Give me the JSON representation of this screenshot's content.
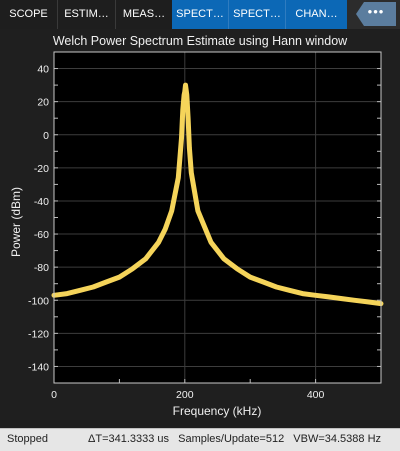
{
  "tabs": [
    {
      "label": "SCOPE",
      "selected": false
    },
    {
      "label": "ESTIM…",
      "selected": false
    },
    {
      "label": "MEAS…",
      "selected": false
    },
    {
      "label": "SPECT…",
      "selected": true
    },
    {
      "label": "SPECT…",
      "selected": true
    },
    {
      "label": "CHAN…",
      "selected": true
    }
  ],
  "more_label": "•••",
  "chart_data": {
    "type": "line",
    "title": "Welch Power Spectrum Estimate using Hann window",
    "xlabel": "Frequency (kHz)",
    "ylabel": "Power (dBm)",
    "xlim": [
      0,
      500
    ],
    "ylim": [
      -150,
      50
    ],
    "xticks": [
      0,
      200,
      400
    ],
    "yticks": [
      40,
      20,
      0,
      -20,
      -40,
      -60,
      -80,
      -100,
      -120,
      -140
    ],
    "grid": true,
    "line_color": "#f5d45a",
    "background": "#000000",
    "series": [
      {
        "x": [
          0,
          20,
          40,
          60,
          80,
          100,
          120,
          140,
          160,
          170,
          180,
          190,
          195,
          197,
          199,
          200,
          201,
          203,
          205,
          207,
          210,
          220,
          240,
          260,
          280,
          300,
          320,
          340,
          360,
          380,
          400,
          420,
          440,
          460,
          480,
          500
        ],
        "y": [
          -97,
          -96,
          -94,
          -92,
          -89,
          -86,
          -81,
          -75,
          -65,
          -57,
          -46,
          -26,
          -2,
          15,
          24,
          26,
          30,
          24,
          10,
          -8,
          -23,
          -46,
          -65,
          -75,
          -81,
          -86,
          -89,
          -92,
          -94,
          -96,
          -97,
          -98,
          -99,
          -100,
          -101,
          -102
        ]
      }
    ]
  },
  "status": {
    "state": "Stopped",
    "delta_t": "ΔT=341.3333 us",
    "samples": "Samples/Update=512",
    "vbw": "VBW=34.5388 Hz"
  }
}
